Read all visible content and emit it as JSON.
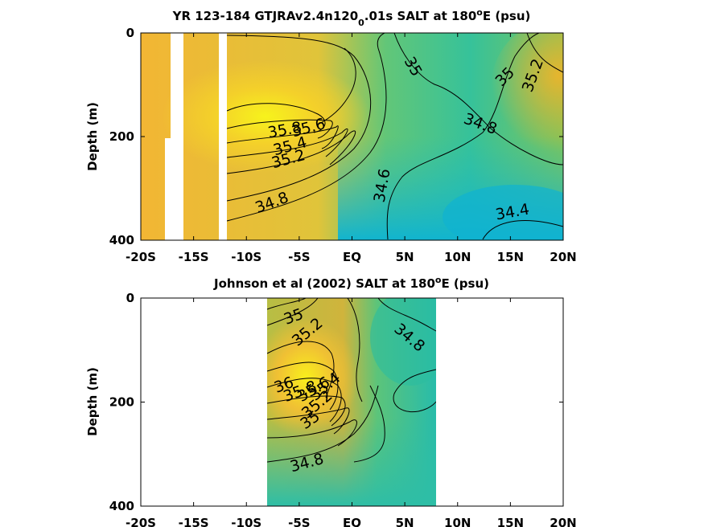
{
  "chart_data": [
    {
      "type": "heatmap",
      "title_parts": [
        "YR 123-184 GTJRAv2.4n120",
        "0",
        ".01s SALT at 180",
        "o",
        "E (psu)"
      ],
      "ylabel": "Depth (m)",
      "x_ticks": [
        "-20S",
        "-15S",
        "-10S",
        "-5S",
        "EQ",
        "5N",
        "10N",
        "15N",
        "20N"
      ],
      "y_ticks": [
        "0",
        "200",
        "400"
      ],
      "xlim": [
        -20,
        20
      ],
      "ylim": [
        0,
        400
      ],
      "contour_labels": [
        "35",
        "35.2",
        "35",
        "35.8",
        "35.6",
        "35.4",
        "35.2",
        "34.8",
        "34.8",
        "34.6",
        "34.4"
      ]
    },
    {
      "type": "heatmap",
      "title_parts": [
        "Johnson et al (2002) SALT at 180",
        "o",
        "E (psu)"
      ],
      "ylabel": "Depth (m)",
      "x_ticks": [
        "-20S",
        "-15S",
        "-10S",
        "-5S",
        "EQ",
        "5N",
        "10N",
        "15N",
        "20N"
      ],
      "y_ticks": [
        "0",
        "200",
        "400"
      ],
      "xlim": [
        -20,
        20
      ],
      "ylim": [
        0,
        400
      ],
      "data_x_range": [
        -8,
        8
      ],
      "contour_labels": [
        "35",
        "35.2",
        "34.8",
        "36",
        "35.8",
        "35.6",
        "35.4",
        "35.2",
        "35",
        "34.8"
      ]
    }
  ]
}
